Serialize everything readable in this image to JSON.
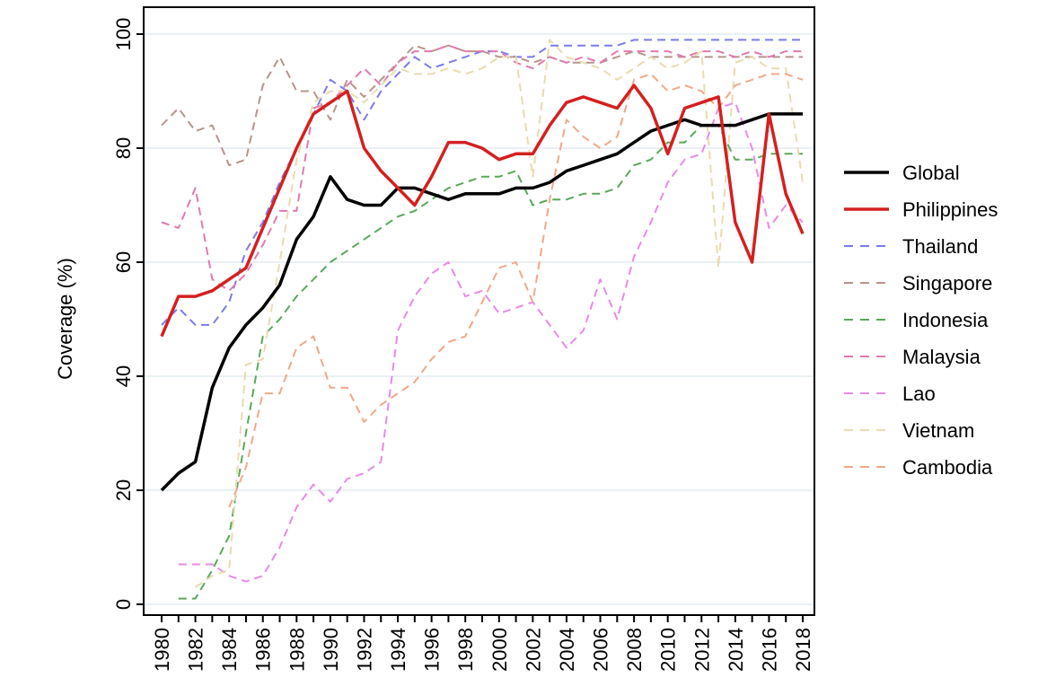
{
  "chart_data": {
    "type": "line",
    "ylabel": "Coverage (%)",
    "xlabel": "",
    "ylim": [
      0,
      100
    ],
    "yticks": [
      0,
      20,
      40,
      60,
      80,
      100
    ],
    "xlim": [
      1980,
      2018
    ],
    "xticks": [
      "1980",
      "1982",
      "1984",
      "1986",
      "1988",
      "1990",
      "1992",
      "1994",
      "1996",
      "1998",
      "2000",
      "2002",
      "2004",
      "2006",
      "2008",
      "2010",
      "2012",
      "2014",
      "2016",
      "2018"
    ],
    "grid": "horizontal",
    "legend_position": "right",
    "series": [
      {
        "name": "Global",
        "color": "#000000",
        "style": "solid",
        "x": [
          1980,
          1981,
          1982,
          1983,
          1984,
          1985,
          1986,
          1987,
          1988,
          1989,
          1990,
          1991,
          1992,
          1993,
          1994,
          1995,
          1996,
          1997,
          1998,
          1999,
          2000,
          2001,
          2002,
          2003,
          2004,
          2005,
          2006,
          2007,
          2008,
          2009,
          2010,
          2011,
          2012,
          2013,
          2014,
          2015,
          2016,
          2017,
          2018
        ],
        "values": [
          20,
          23,
          25,
          38,
          45,
          49,
          52,
          56,
          64,
          68,
          75,
          71,
          70,
          70,
          73,
          73,
          72,
          71,
          72,
          72,
          72,
          73,
          73,
          74,
          76,
          77,
          78,
          79,
          81,
          83,
          84,
          85,
          84,
          84,
          84,
          85,
          86,
          86,
          86
        ]
      },
      {
        "name": "Philippines",
        "color": "#d42020",
        "style": "solid",
        "x": [
          1980,
          1981,
          1982,
          1983,
          1984,
          1985,
          1986,
          1987,
          1988,
          1989,
          1990,
          1991,
          1992,
          1993,
          1994,
          1995,
          1996,
          1997,
          1998,
          1999,
          2000,
          2001,
          2002,
          2003,
          2004,
          2005,
          2006,
          2007,
          2008,
          2009,
          2010,
          2011,
          2012,
          2013,
          2014,
          2015,
          2016,
          2017,
          2018
        ],
        "values": [
          47,
          54,
          54,
          55,
          57,
          59,
          66,
          73,
          80,
          86,
          88,
          90,
          80,
          76,
          73,
          70,
          75,
          81,
          81,
          80,
          78,
          79,
          79,
          84,
          88,
          89,
          88,
          87,
          91,
          87,
          79,
          87,
          88,
          89,
          67,
          60,
          86,
          72,
          65
        ]
      },
      {
        "name": "Thailand",
        "color": "#7b7be8",
        "style": "dashed",
        "x": [
          1980,
          1981,
          1982,
          1983,
          1984,
          1985,
          1986,
          1987,
          1988,
          1989,
          1990,
          1991,
          1992,
          1993,
          1994,
          1995,
          1996,
          1997,
          1998,
          1999,
          2000,
          2001,
          2002,
          2003,
          2004,
          2005,
          2006,
          2007,
          2008,
          2009,
          2010,
          2011,
          2012,
          2013,
          2014,
          2015,
          2016,
          2017,
          2018
        ],
        "values": [
          49,
          52,
          49,
          49,
          53,
          62,
          67,
          74,
          80,
          86,
          92,
          90,
          85,
          90,
          93,
          96,
          94,
          95,
          96,
          97,
          97,
          96,
          96,
          98,
          98,
          98,
          98,
          98,
          99,
          99,
          99,
          99,
          99,
          99,
          99,
          99,
          99,
          99,
          99
        ]
      },
      {
        "name": "Singapore",
        "color": "#b8938c",
        "style": "dashed",
        "x": [
          1980,
          1981,
          1982,
          1983,
          1984,
          1985,
          1986,
          1987,
          1988,
          1989,
          1990,
          1991,
          1992,
          1993,
          1994,
          1995,
          1996,
          1997,
          1998,
          1999,
          2000,
          2001,
          2002,
          2003,
          2004,
          2005,
          2006,
          2007,
          2008,
          2009,
          2010,
          2011,
          2012,
          2013,
          2014,
          2015,
          2016,
          2017,
          2018
        ],
        "values": [
          84,
          87,
          83,
          84,
          77,
          78,
          91,
          96,
          90,
          90,
          85,
          92,
          89,
          92,
          95,
          98,
          97,
          98,
          97,
          97,
          96,
          96,
          95,
          96,
          95,
          95,
          95,
          96,
          97,
          96,
          96,
          96,
          96,
          96,
          96,
          96,
          96,
          96,
          96
        ]
      },
      {
        "name": "Indonesia",
        "color": "#5aa85a",
        "style": "dashed",
        "x": [
          1981,
          1982,
          1983,
          1984,
          1985,
          1986,
          1987,
          1988,
          1989,
          1990,
          1991,
          1992,
          1993,
          1994,
          1995,
          1996,
          1997,
          1998,
          1999,
          2000,
          2001,
          2002,
          2003,
          2004,
          2005,
          2006,
          2007,
          2008,
          2009,
          2010,
          2011,
          2012,
          2013,
          2014,
          2015,
          2016,
          2017,
          2018
        ],
        "values": [
          1,
          1,
          6,
          12,
          30,
          47,
          50,
          54,
          57,
          60,
          62,
          64,
          66,
          68,
          69,
          71,
          73,
          74,
          75,
          75,
          76,
          70,
          71,
          71,
          72,
          72,
          73,
          77,
          78,
          81,
          81,
          84,
          84,
          78,
          78,
          79,
          79,
          79
        ]
      },
      {
        "name": "Malaysia",
        "color": "#e07ab0",
        "style": "dashed",
        "x": [
          1980,
          1981,
          1982,
          1983,
          1984,
          1985,
          1986,
          1987,
          1988,
          1989,
          1990,
          1991,
          1992,
          1993,
          1994,
          1995,
          1996,
          1997,
          1998,
          1999,
          2000,
          2001,
          2002,
          2003,
          2004,
          2005,
          2006,
          2007,
          2008,
          2009,
          2010,
          2011,
          2012,
          2013,
          2014,
          2015,
          2016,
          2017,
          2018
        ],
        "values": [
          67,
          66,
          73,
          57,
          55,
          58,
          63,
          69,
          69,
          87,
          88,
          91,
          94,
          91,
          95,
          97,
          97,
          98,
          97,
          97,
          97,
          95,
          94,
          96,
          95,
          96,
          95,
          97,
          97,
          97,
          97,
          96,
          97,
          97,
          96,
          97,
          96,
          97,
          97
        ]
      },
      {
        "name": "Lao",
        "color": "#e88ae8",
        "style": "dashed",
        "x": [
          1981,
          1982,
          1983,
          1984,
          1985,
          1986,
          1987,
          1988,
          1989,
          1990,
          1991,
          1992,
          1993,
          1994,
          1995,
          1996,
          1997,
          1998,
          1999,
          2000,
          2001,
          2002,
          2003,
          2004,
          2005,
          2006,
          2007,
          2008,
          2009,
          2010,
          2011,
          2012,
          2013,
          2014,
          2015,
          2016,
          2017,
          2018
        ],
        "values": [
          7,
          7,
          7,
          5,
          4,
          5,
          10,
          17,
          21,
          18,
          22,
          23,
          25,
          48,
          54,
          58,
          60,
          54,
          55,
          51,
          52,
          53,
          49,
          45,
          48,
          57,
          50,
          61,
          67,
          74,
          78,
          79,
          87,
          88,
          80,
          66,
          70,
          67
        ]
      },
      {
        "name": "Vietnam",
        "color": "#e8dcb0",
        "style": "dashed",
        "x": [
          1982,
          1983,
          1984,
          1985,
          1986,
          1987,
          1988,
          1989,
          1990,
          1991,
          1992,
          1993,
          1994,
          1995,
          1996,
          1997,
          1998,
          1999,
          2000,
          2001,
          2002,
          2003,
          2004,
          2005,
          2006,
          2007,
          2008,
          2009,
          2010,
          2011,
          2012,
          2013,
          2014,
          2015,
          2016,
          2017,
          2018
        ],
        "values": [
          3,
          5,
          6,
          42,
          43,
          60,
          78,
          88,
          90,
          90,
          88,
          91,
          94,
          93,
          93,
          94,
          93,
          94,
          96,
          96,
          75,
          99,
          96,
          95,
          94,
          92,
          94,
          96,
          94,
          95,
          97,
          59,
          95,
          96,
          94,
          94,
          74
        ]
      },
      {
        "name": "Cambodia",
        "color": "#f0a88a",
        "style": "dashed",
        "x": [
          1984,
          1985,
          1986,
          1987,
          1988,
          1989,
          1990,
          1991,
          1992,
          1993,
          1994,
          1995,
          1996,
          1997,
          1998,
          1999,
          2000,
          2001,
          2002,
          2003,
          2004,
          2005,
          2006,
          2007,
          2008,
          2009,
          2010,
          2011,
          2012,
          2013,
          2014,
          2015,
          2016,
          2017,
          2018
        ],
        "values": [
          17,
          24,
          37,
          37,
          45,
          47,
          38,
          38,
          32,
          35,
          37,
          39,
          43,
          46,
          47,
          53,
          59,
          60,
          53,
          71,
          85,
          82,
          80,
          82,
          92,
          93,
          90,
          91,
          90,
          87,
          91,
          92,
          93,
          93,
          92
        ]
      }
    ]
  }
}
